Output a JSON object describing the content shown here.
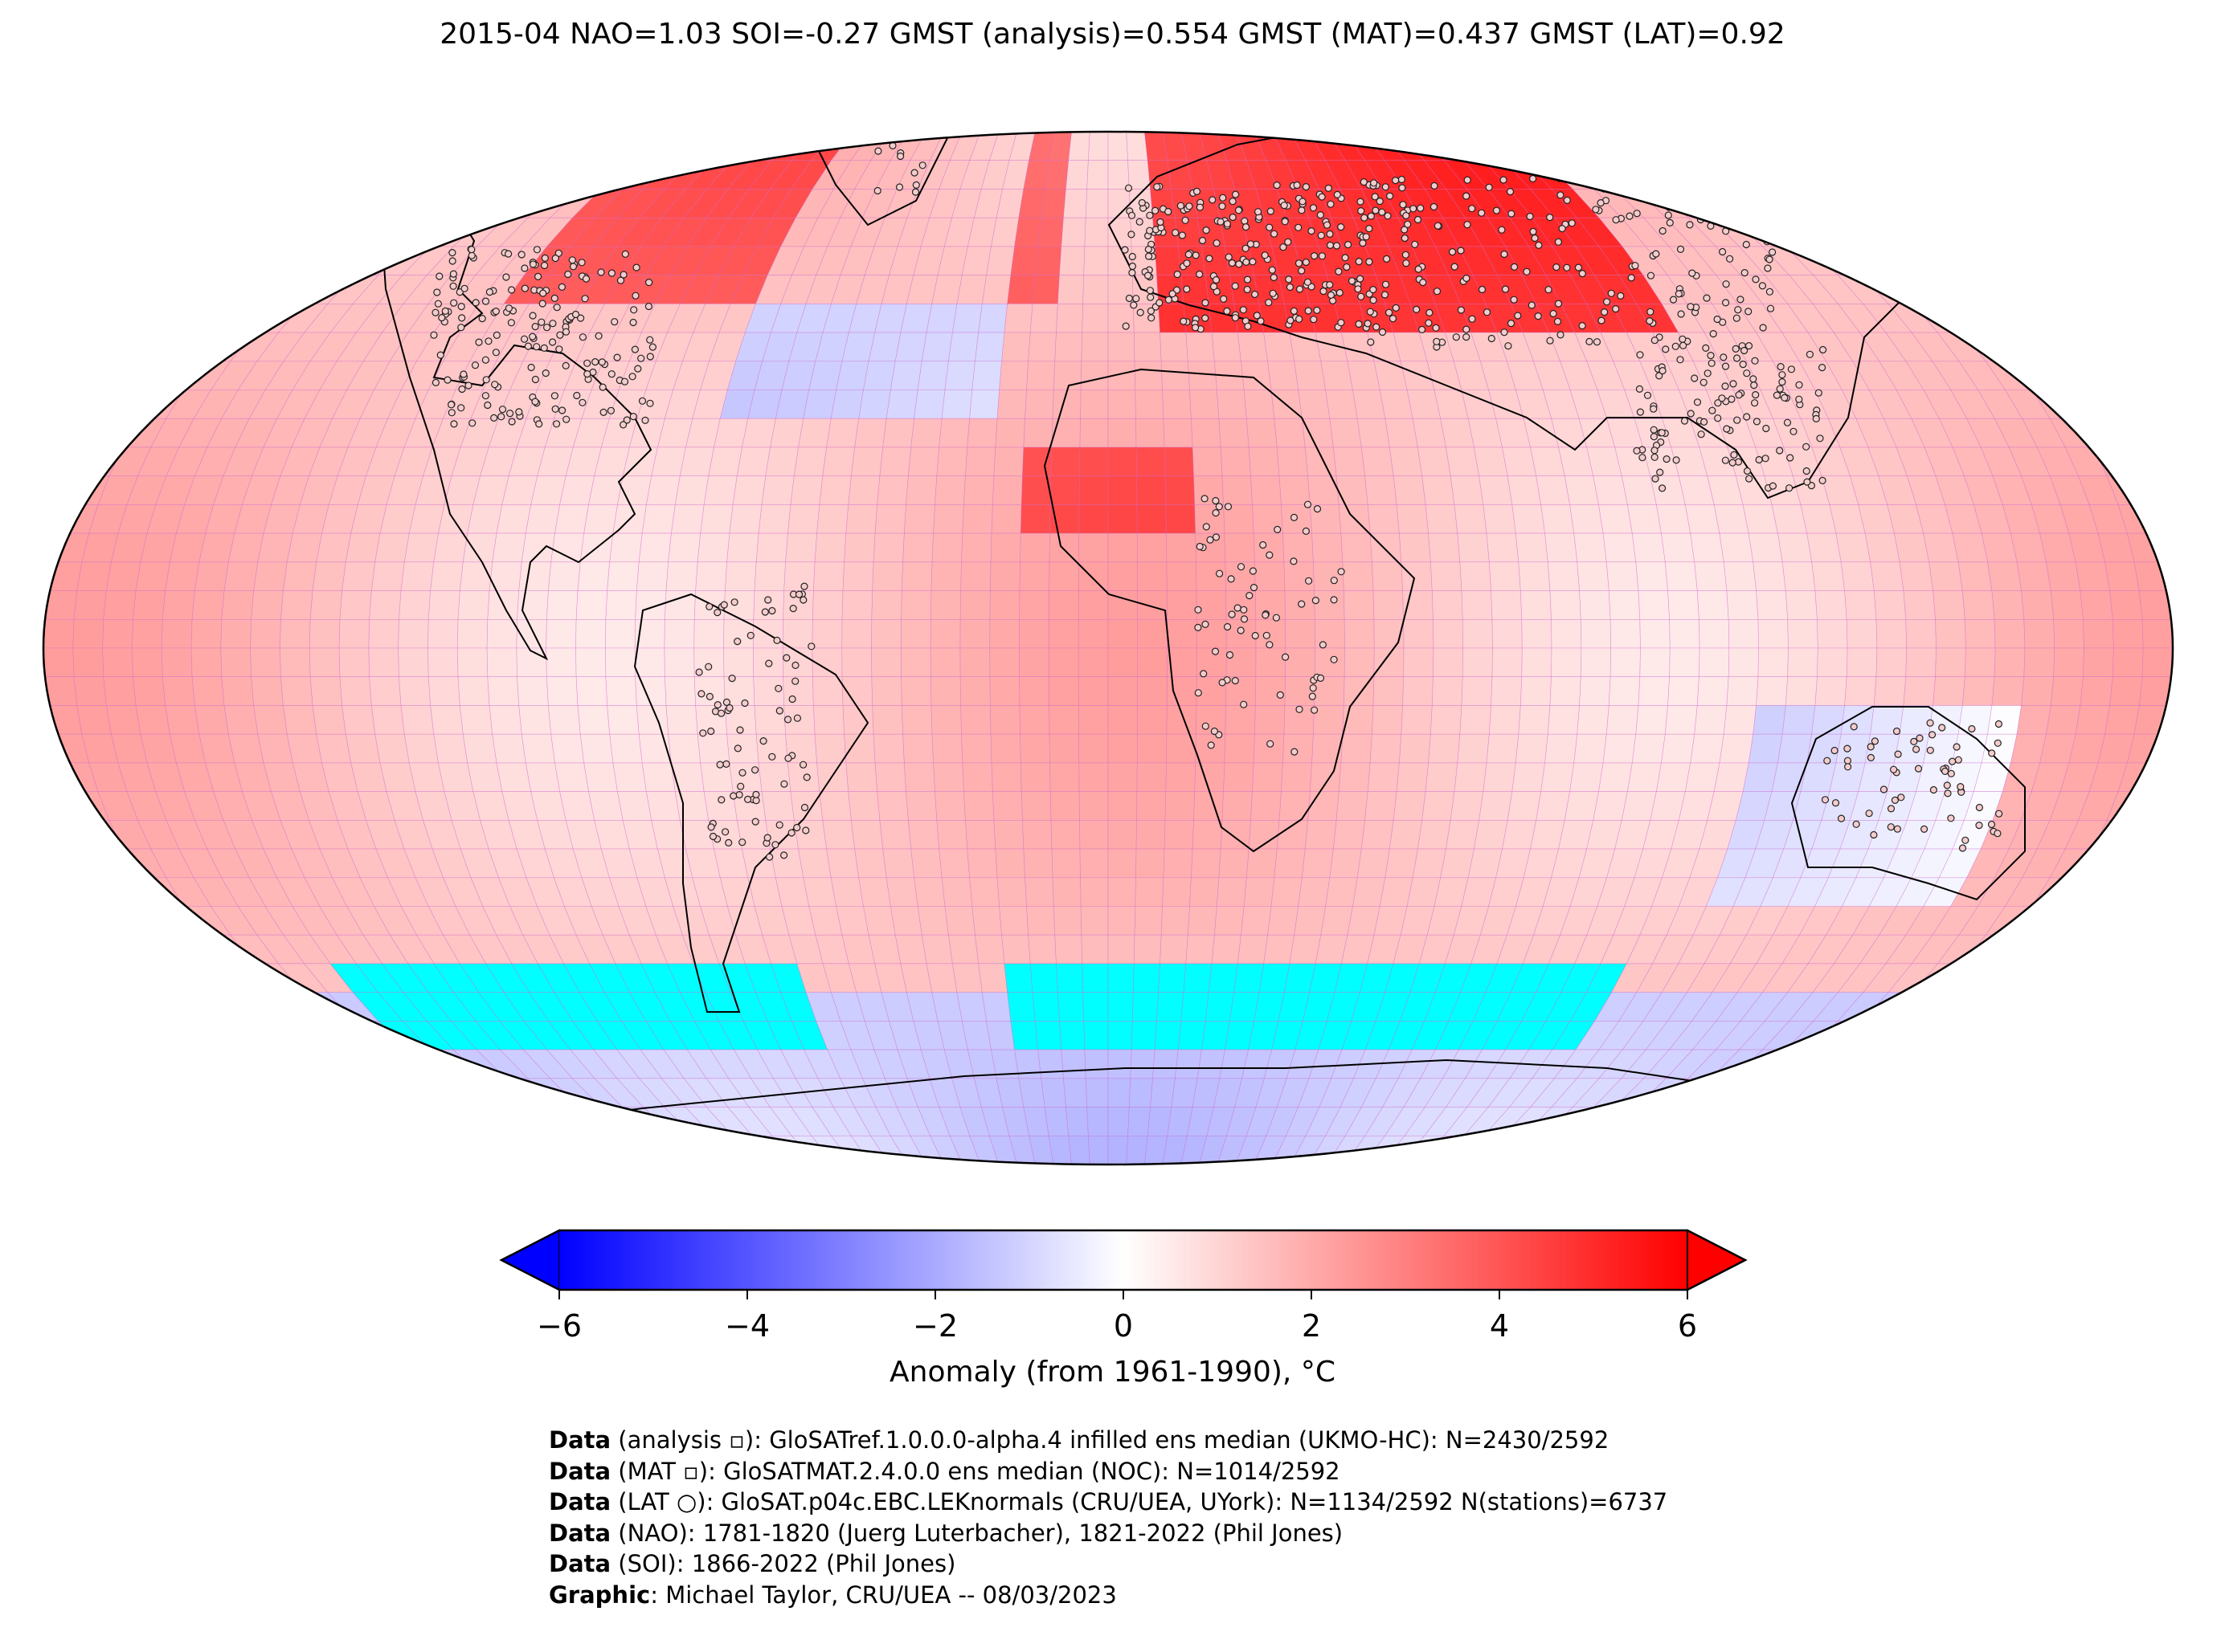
{
  "title": "2015-04 NAO=1.03 SOI=-0.27 GMST (analysis)=0.554 GMST (MAT)=0.437 GMST (LAT)=0.92",
  "colorbar": {
    "label": "Anomaly (from 1961-1990), °C",
    "ticks": [
      "−6",
      "−4",
      "−2",
      "0",
      "2",
      "4",
      "6"
    ],
    "tick_values": [
      -6,
      -4,
      -2,
      0,
      2,
      4,
      6
    ],
    "range": [
      -6,
      6
    ],
    "colors": {
      "low": "#0000ff",
      "mid": "#ffffff",
      "high": "#ff0000"
    },
    "extend": "both"
  },
  "map": {
    "projection": "Robinson",
    "land_mask_color": "#00ffff",
    "gridline_color": "#cc66cc",
    "coast_color": "#000000"
  },
  "credits": [
    {
      "label": "Data",
      "text": " (analysis ▫): GloSATref.1.0.0.0-alpha.4 infilled ens median (UKMO-HC): N=2430/2592"
    },
    {
      "label": "Data",
      "text": " (MAT ▫): GloSATMAT.2.4.0.0 ens median (NOC): N=1014/2592"
    },
    {
      "label": "Data",
      "text": " (LAT ○): GloSAT.p04c.EBC.LEKnormals (CRU/UEA, UYork): N=1134/2592 N(stations)=6737"
    },
    {
      "label": "Data",
      "text": " (NAO): 1781-1820 (Juerg Luterbacher), 1821-2022 (Phil Jones)"
    },
    {
      "label": "Data",
      "text": " (SOI): 1866-2022 (Phil Jones)"
    },
    {
      "label": "Graphic",
      "text": ": Michael Taylor, CRU/UEA -- 08/03/2023"
    }
  ]
}
